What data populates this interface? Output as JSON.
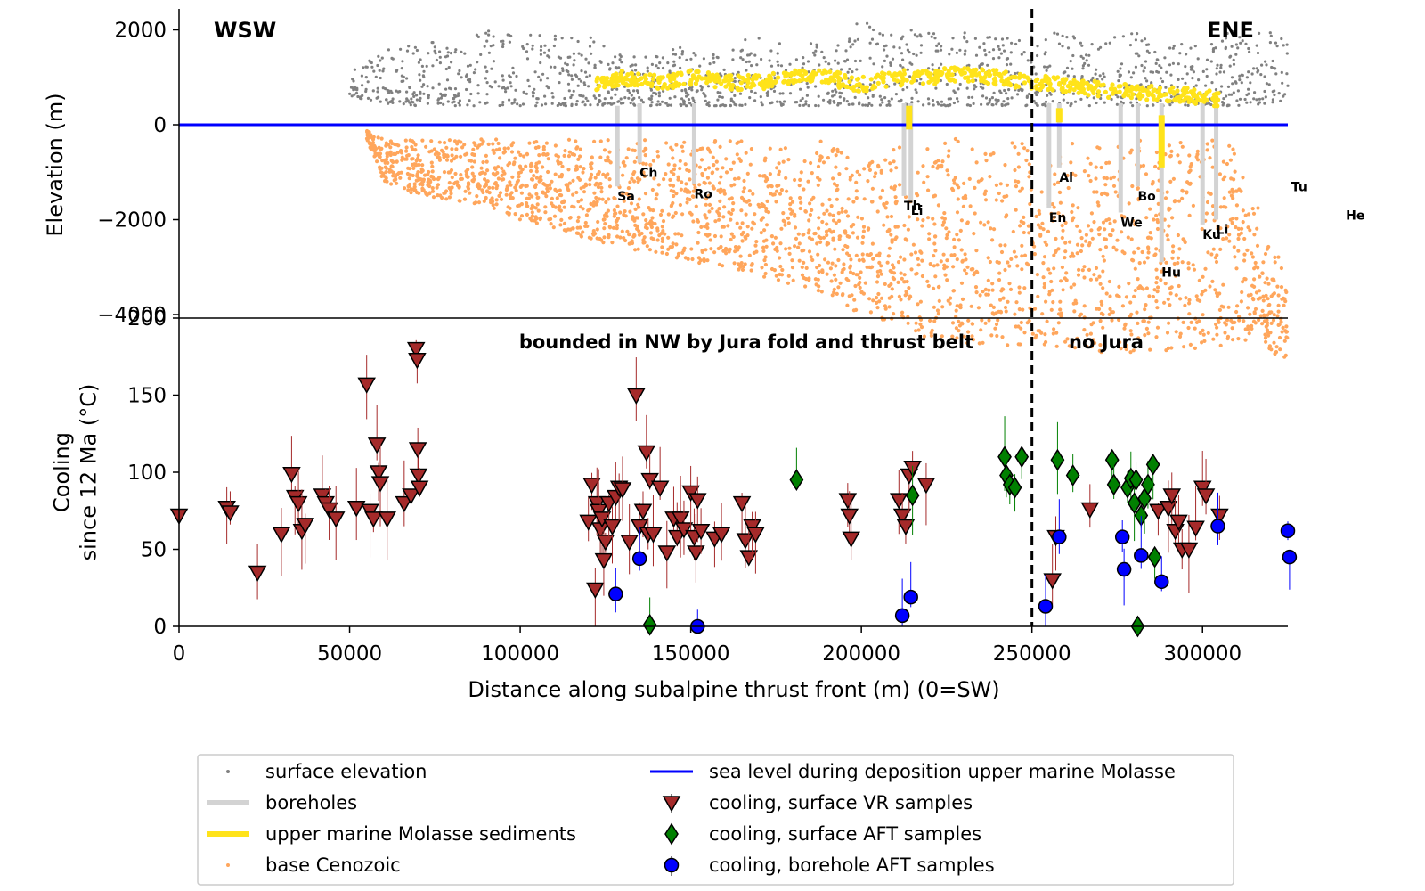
{
  "chart_data": [
    {
      "type": "scatter",
      "panel": "top",
      "ylabel": "Elevation (m)",
      "xlabel": "",
      "xlim": [
        0,
        325000
      ],
      "ylim": [
        -5000,
        3000
      ],
      "yticks": [
        2000,
        0,
        -2000,
        -4000
      ],
      "ytick_labels": [
        "2000",
        "0",
        "−2000",
        "−4000"
      ],
      "corner_labels": {
        "left": "WSW",
        "right": "ENE"
      },
      "sea_level": 0,
      "surface_profile": {
        "x": [
          50000,
          60000,
          70000,
          80000,
          90000,
          100000,
          110000,
          120000,
          130000,
          140000,
          150000,
          160000,
          170000,
          180000,
          190000,
          200000,
          210000,
          220000,
          230000,
          240000,
          250000,
          260000,
          270000,
          280000,
          290000,
          300000,
          310000,
          325000
        ],
        "ymin": [
          600,
          450,
          400,
          400,
          400,
          400,
          400,
          400,
          400,
          400,
          400,
          400,
          400,
          400,
          400,
          400,
          400,
          400,
          400,
          400,
          400,
          400,
          400,
          400,
          400,
          400,
          400,
          400
        ],
        "ymax": [
          1100,
          1600,
          1700,
          1800,
          2000,
          1900,
          2000,
          1900,
          1500,
          1500,
          1700,
          1700,
          1900,
          1800,
          1900,
          2200,
          2000,
          2000,
          2000,
          1800,
          2000,
          1900,
          1800,
          2000,
          1700,
          1800,
          2000,
          2000
        ]
      },
      "molasse_profile": {
        "x": [
          122000,
          130000,
          140000,
          150000,
          160000,
          170000,
          180000,
          190000,
          200000,
          210000,
          220000,
          230000,
          240000,
          250000,
          260000,
          270000,
          280000,
          290000,
          300000,
          305000
        ],
        "y": [
          800,
          950,
          850,
          950,
          850,
          850,
          950,
          950,
          800,
          950,
          950,
          1050,
          950,
          850,
          800,
          700,
          650,
          600,
          550,
          500
        ]
      },
      "base_cenozoic_profile": {
        "x": [
          55000,
          60000,
          70000,
          80000,
          90000,
          100000,
          110000,
          120000,
          130000,
          140000,
          150000,
          160000,
          170000,
          180000,
          190000,
          200000,
          210000,
          220000,
          230000,
          240000,
          250000,
          260000,
          270000,
          280000,
          290000,
          300000,
          310000,
          315000,
          320000,
          325000
        ],
        "ymin": [
          -300,
          -1200,
          -1500,
          -1600,
          -1700,
          -2000,
          -2200,
          -2400,
          -2600,
          -2700,
          -2900,
          -3000,
          -3200,
          -3400,
          -3600,
          -4000,
          -4300,
          -4500,
          -4600,
          -4700,
          -4600,
          -4700,
          -4800,
          -4800,
          -4800,
          -4700,
          -4700,
          -4400,
          -4800,
          -5000
        ],
        "ymax": [
          -100,
          -300,
          -300,
          -300,
          -300,
          -300,
          -300,
          -300,
          -300,
          -300,
          -300,
          -300,
          -300,
          -300,
          -300,
          -300,
          -300,
          -300,
          -300,
          -300,
          -300,
          -300,
          -300,
          -300,
          -300,
          -300,
          -300,
          -1400,
          -2500,
          -3000
        ]
      },
      "boreholes": [
        {
          "label": "Sa",
          "x": 128500,
          "top": 400,
          "bottom": -1300
        },
        {
          "label": "Ch",
          "x": 135000,
          "top": 450,
          "bottom": -800
        },
        {
          "label": "Ro",
          "x": 151000,
          "top": 450,
          "bottom": -1250
        },
        {
          "label": "Th",
          "x": 212500,
          "top": 450,
          "bottom": -1500
        },
        {
          "label": "Li",
          "x": 214500,
          "top": 450,
          "bottom": -1600
        },
        {
          "label": "Al",
          "x": 258000,
          "top": 450,
          "bottom": -900
        },
        {
          "label": "En",
          "x": 255000,
          "top": 450,
          "bottom": -1750
        },
        {
          "label": "Bo",
          "x": 281000,
          "top": 450,
          "bottom": -1300
        },
        {
          "label": "We",
          "x": 276000,
          "top": 450,
          "bottom": -1850
        },
        {
          "label": "Hu",
          "x": 288000,
          "top": 450,
          "bottom": -2900
        },
        {
          "label": "Ku",
          "x": 300000,
          "top": 450,
          "bottom": -2100
        },
        {
          "label": "Li",
          "x": 304000,
          "top": 450,
          "bottom": -2000
        },
        {
          "label": "Tu",
          "x": 326000,
          "top": null,
          "bottom": -1100
        },
        {
          "label": "He",
          "x": 342000,
          "top": null,
          "bottom": -1700
        }
      ],
      "divider_x": 250000
    },
    {
      "type": "scatter",
      "panel": "bottom",
      "xlabel": "Distance along subalpine thrust front (m) (0=SW)",
      "ylabel": "Cooling\nsince 12 Ma (°C)",
      "xlim": [
        0,
        325000
      ],
      "ylim": [
        0,
        200
      ],
      "xticks": [
        0,
        50000,
        100000,
        150000,
        200000,
        250000,
        300000
      ],
      "yticks": [
        0,
        50,
        100,
        150,
        200
      ],
      "annotations": [
        "bounded in NW by Jura fold and thrust belt",
        "no Jura"
      ],
      "divider_x": 250000,
      "series": [
        {
          "name": "cooling, surface VR samples",
          "x": [
            0,
            14000,
            15000,
            23000,
            30000,
            33000,
            34000,
            35000,
            36000,
            37000,
            42000,
            43000,
            44000,
            46000,
            52000,
            55000,
            56000,
            57000,
            58000,
            58500,
            59000,
            61000,
            66000,
            68000,
            69500,
            69800,
            70000,
            70200,
            70500,
            120000,
            121000,
            122000,
            122500,
            123000,
            123500,
            124000,
            124500,
            125000,
            126000,
            127000,
            128000,
            129000,
            130000,
            132000,
            134000,
            135000,
            136000,
            137000,
            137500,
            138000,
            139000,
            141000,
            143000,
            145000,
            146000,
            147000,
            148000,
            150000,
            151000,
            151500,
            152000,
            153000,
            157000,
            159000,
            165000,
            166000,
            167000,
            168000,
            169000,
            196000,
            196500,
            197000,
            211000,
            212000,
            213000,
            214000,
            215000,
            219000,
            256000,
            257000,
            267000,
            287000,
            290000,
            291000,
            292000,
            293000,
            294000,
            296000,
            298000,
            300000,
            301000,
            305000
          ],
          "y": [
            72,
            77,
            74,
            35,
            60,
            99,
            84,
            80,
            62,
            66,
            85,
            80,
            76,
            70,
            77,
            157,
            75,
            70,
            118,
            100,
            93,
            70,
            80,
            85,
            180,
            173,
            115,
            98,
            90,
            68,
            92,
            24,
            80,
            75,
            63,
            70,
            43,
            55,
            80,
            65,
            84,
            90,
            89,
            55,
            150,
            65,
            75,
            113,
            60,
            95,
            60,
            90,
            48,
            70,
            58,
            70,
            63,
            87,
            58,
            48,
            82,
            62,
            57,
            60,
            80,
            56,
            45,
            65,
            60,
            82,
            72,
            57,
            82,
            72,
            65,
            98,
            103,
            92,
            30,
            58,
            76,
            75,
            77,
            85,
            62,
            68,
            50,
            50,
            64,
            90,
            85,
            72
          ]
        },
        {
          "name": "cooling, surface AFT samples",
          "x": [
            138000,
            181000,
            215000,
            242000,
            242500,
            243500,
            245000,
            247000,
            257500,
            262000,
            273500,
            274000,
            278000,
            279000,
            280000,
            280500,
            281000,
            282000,
            283000,
            284000,
            285500,
            286000
          ],
          "y": [
            1,
            95,
            85,
            110,
            98,
            92,
            90,
            110,
            108,
            98,
            108,
            92,
            90,
            96,
            80,
            95,
            0,
            72,
            83,
            92,
            105,
            45
          ]
        },
        {
          "name": "cooling, borehole AFT samples",
          "x": [
            128000,
            135000,
            152000,
            212000,
            214500,
            254000,
            258000,
            276500,
            277000,
            282000,
            288000,
            304500,
            325000,
            325500
          ],
          "y": [
            21,
            44,
            0,
            7,
            19,
            13,
            58,
            58,
            37,
            46,
            29,
            65,
            62,
            45
          ]
        }
      ],
      "colors": {
        "vr": "#a52a2a",
        "aft_surface": "#008000",
        "aft_borehole": "#0000ff"
      }
    }
  ],
  "legend": [
    {
      "label": "surface elevation",
      "marker": "dot",
      "color": "#808080"
    },
    {
      "label": "sea level during deposition upper marine Molasse",
      "marker": "line",
      "color": "#0000ff"
    },
    {
      "label": "boreholes",
      "marker": "thickline",
      "color": "#d3d3d3"
    },
    {
      "label": "cooling, surface VR samples",
      "marker": "triangle",
      "color": "#a52a2a"
    },
    {
      "label": "upper marine Molasse sediments",
      "marker": "thickline",
      "color": "#ffe31a"
    },
    {
      "label": "cooling, surface AFT samples",
      "marker": "diamond",
      "color": "#008000"
    },
    {
      "label": "base Cenozoic",
      "marker": "dot",
      "color": "#ffa65c"
    },
    {
      "label": "cooling, borehole AFT samples",
      "marker": "circle",
      "color": "#0000ff"
    }
  ],
  "colors": {
    "surface": "#808080",
    "molasse": "#ffe31a",
    "cenozoic": "#ffa65c",
    "sea": "#0000ff",
    "borehole": "#d3d3d3"
  }
}
